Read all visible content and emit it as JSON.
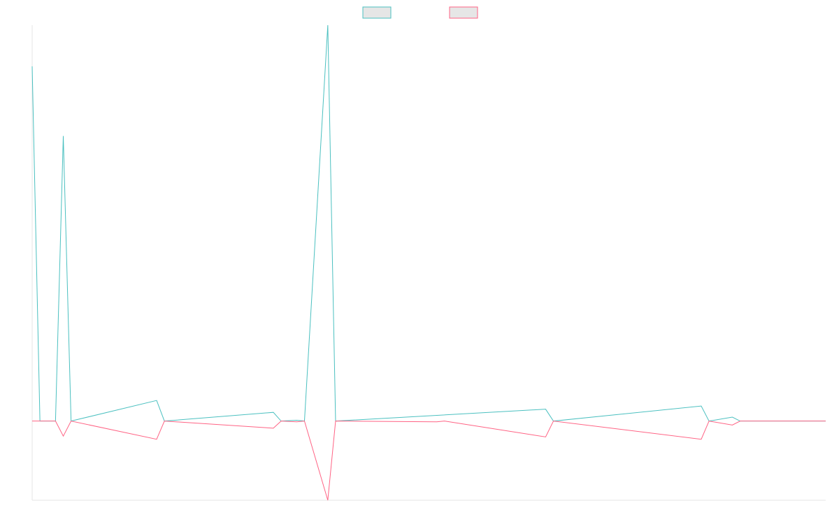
{
  "chart_data": {
    "type": "line",
    "title": "",
    "xlabel": "",
    "ylabel": "",
    "grid": false,
    "legend_position": "top-center",
    "x_count": 103,
    "ylim": [
      -100,
      500
    ],
    "series": [
      {
        "name": "",
        "color": "#4bc0c0",
        "fill": "#e6e6e6",
        "points": [
          [
            0,
            448
          ],
          [
            1,
            0
          ],
          [
            2,
            0
          ],
          [
            3,
            0
          ],
          [
            4,
            360
          ],
          [
            5,
            0
          ],
          [
            16,
            26
          ],
          [
            17,
            0
          ],
          [
            31,
            11
          ],
          [
            32,
            0
          ],
          [
            34,
            1
          ],
          [
            35,
            0
          ],
          [
            38,
            500
          ],
          [
            39,
            0
          ],
          [
            66,
            15
          ],
          [
            67,
            0
          ],
          [
            86,
            19
          ],
          [
            87,
            0
          ],
          [
            90,
            5
          ],
          [
            91,
            0
          ],
          [
            102,
            0
          ]
        ]
      },
      {
        "name": "",
        "color": "#ff6384",
        "fill": "#e6e6e6",
        "points": [
          [
            0,
            0
          ],
          [
            3,
            0
          ],
          [
            4,
            -19
          ],
          [
            5,
            0
          ],
          [
            16,
            -23
          ],
          [
            17,
            0
          ],
          [
            31,
            -9
          ],
          [
            32,
            0
          ],
          [
            34,
            -1
          ],
          [
            35,
            0
          ],
          [
            38,
            -100
          ],
          [
            39,
            0
          ],
          [
            52,
            -1
          ],
          [
            53,
            0
          ],
          [
            66,
            -20
          ],
          [
            67,
            0
          ],
          [
            86,
            -23
          ],
          [
            87,
            0
          ],
          [
            90,
            -5
          ],
          [
            91,
            0
          ],
          [
            102,
            0
          ]
        ]
      }
    ]
  }
}
